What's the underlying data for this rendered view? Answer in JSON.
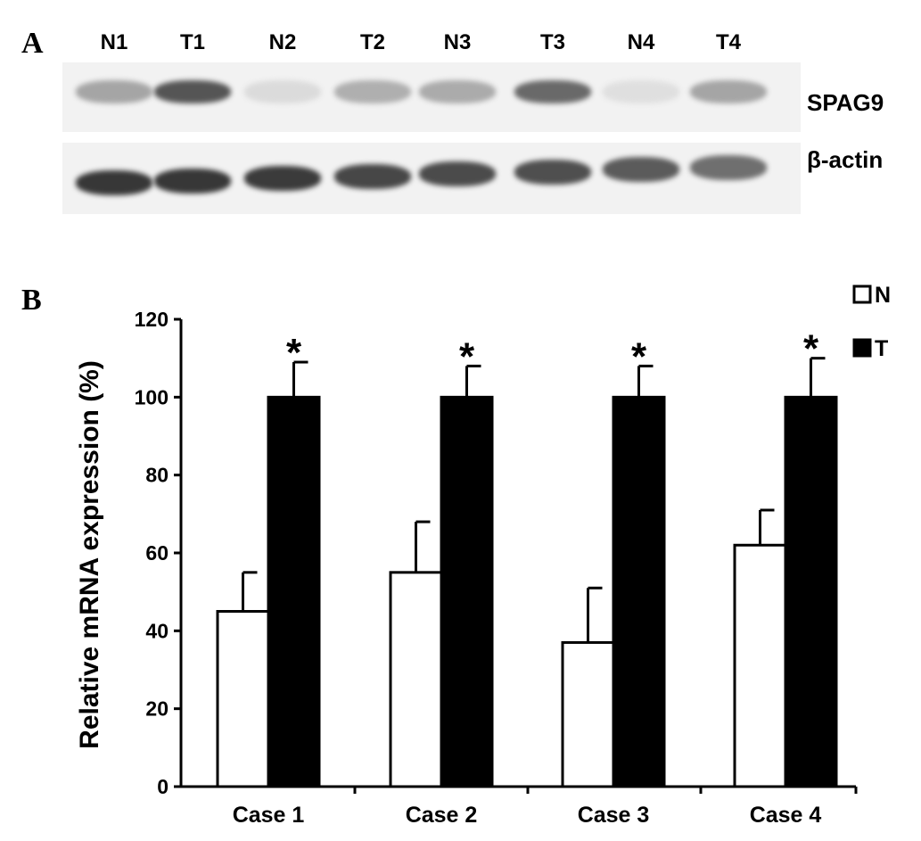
{
  "panels": {
    "a": "A",
    "b": "B"
  },
  "blot": {
    "lanes": [
      "N1",
      "T1",
      "N2",
      "T2",
      "N3",
      "T3",
      "N4",
      "T4"
    ],
    "rows": [
      {
        "label": "SPAG9",
        "intensity": [
          0.35,
          0.75,
          0.08,
          0.3,
          0.32,
          0.65,
          0.06,
          0.35
        ]
      },
      {
        "label": "β-actin",
        "intensity": [
          0.9,
          0.9,
          0.88,
          0.82,
          0.8,
          0.78,
          0.72,
          0.62
        ]
      }
    ]
  },
  "chart_data": {
    "type": "bar",
    "categories": [
      "Case 1",
      "Case 2",
      "Case 3",
      "Case 4"
    ],
    "series": [
      {
        "name": "N",
        "values": [
          45,
          55,
          37,
          62
        ],
        "errors": [
          10,
          13,
          14,
          9
        ],
        "color": "#ffffff"
      },
      {
        "name": "T",
        "values": [
          100,
          100,
          100,
          100
        ],
        "errors": [
          9,
          8,
          8,
          10
        ],
        "color": "#000000"
      }
    ],
    "ylabel": "Relative mRNA expression (%)",
    "ylim": [
      0,
      120
    ],
    "yticks": [
      0,
      20,
      40,
      60,
      80,
      100,
      120
    ],
    "annotations": [
      "*",
      "*",
      "*",
      "*"
    ],
    "legend": "top-right",
    "grid": false
  }
}
